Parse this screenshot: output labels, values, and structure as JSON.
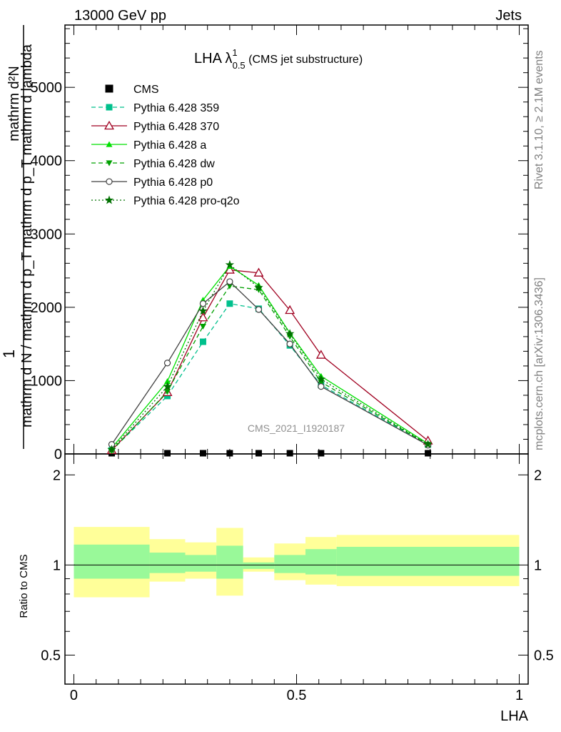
{
  "header": {
    "left": "13000 GeV pp",
    "right": "Jets"
  },
  "side_labels": {
    "rivet": "Rivet 3.1.10, ≥ 2.1M events",
    "mcplots": "mcplots.cern.ch [arXiv:1306.3436]"
  },
  "chart_data": [
    {
      "type": "line",
      "title_main": "LHA λ",
      "title_sup": "1",
      "title_sub": "0.5",
      "title_suffix": " (CMS jet substructure)",
      "watermark": "CMS_2021_I1920187",
      "ylabel_one": "1",
      "ylabel_num": "mathrm d²N",
      "ylabel_den": "mathrm d N / mathrm d p_T mathrm d p_T mathrm d lambda",
      "xlim": [
        -0.02,
        1.02
      ],
      "ylim": [
        0,
        5850
      ],
      "y_ticks": [
        0,
        1000,
        2000,
        3000,
        4000,
        5000
      ],
      "y_tick_labels": [
        "0",
        "1000",
        "2000",
        "3000",
        "4000",
        "5000"
      ],
      "legend_position": "top-left",
      "series": [
        {
          "name": "CMS",
          "color": "#000000",
          "marker": "square-filled",
          "dash": "none",
          "x": [
            0.085,
            0.21,
            0.29,
            0.35,
            0.415,
            0.485,
            0.555,
            0.795
          ],
          "y": [
            0,
            0,
            0,
            0,
            0,
            0,
            0,
            0
          ]
        },
        {
          "name": "Pythia 6.428 359",
          "color": "#00c08c",
          "marker": "square-filled",
          "dash": "6,4",
          "x": [
            0.085,
            0.21,
            0.29,
            0.35,
            0.415,
            0.485,
            0.555,
            0.795
          ],
          "y": [
            50,
            790,
            1530,
            2050,
            1980,
            1480,
            940,
            130
          ]
        },
        {
          "name": "Pythia 6.428 370",
          "color": "#a00020",
          "marker": "triangle-open",
          "dash": "none",
          "x": [
            0.085,
            0.21,
            0.29,
            0.35,
            0.415,
            0.485,
            0.555,
            0.795
          ],
          "y": [
            50,
            840,
            1860,
            2510,
            2470,
            1960,
            1350,
            180
          ]
        },
        {
          "name": "Pythia 6.428 a",
          "color": "#00e000",
          "marker": "triangle-filled",
          "dash": "none",
          "x": [
            0.085,
            0.21,
            0.29,
            0.35,
            0.415,
            0.485,
            0.555,
            0.795
          ],
          "y": [
            80,
            990,
            2100,
            2560,
            2300,
            1650,
            1060,
            140
          ]
        },
        {
          "name": "Pythia 6.428 dw",
          "color": "#00a000",
          "marker": "triangle-down-filled",
          "dash": "6,4",
          "x": [
            0.085,
            0.21,
            0.29,
            0.35,
            0.415,
            0.485,
            0.555,
            0.795
          ],
          "y": [
            40,
            850,
            1740,
            2290,
            2240,
            1600,
            980,
            130
          ]
        },
        {
          "name": "Pythia 6.428 p0",
          "color": "#404040",
          "marker": "circle-open",
          "dash": "none",
          "x": [
            0.085,
            0.21,
            0.29,
            0.35,
            0.415,
            0.485,
            0.555,
            0.795
          ],
          "y": [
            130,
            1240,
            2050,
            2350,
            1970,
            1500,
            920,
            120
          ]
        },
        {
          "name": "Pythia 6.428 pro-q2o",
          "color": "#007000",
          "marker": "star",
          "dash": "2,3",
          "x": [
            0.085,
            0.21,
            0.29,
            0.35,
            0.415,
            0.485,
            0.555,
            0.795
          ],
          "y": [
            60,
            920,
            1950,
            2580,
            2270,
            1640,
            1020,
            130
          ]
        }
      ]
    },
    {
      "type": "area",
      "ylabel": "Ratio to CMS",
      "xlabel": "LHA",
      "xlim": [
        -0.02,
        1.02
      ],
      "ylim": [
        0.4,
        2.35
      ],
      "y_ticks": [
        0.5,
        1,
        2
      ],
      "y_tick_labels": [
        "0.5",
        "1",
        "2"
      ],
      "x_ticks": [
        0,
        0.5,
        1
      ],
      "x_tick_labels": [
        "0",
        "0.5",
        "1"
      ],
      "bins": [
        {
          "x0": 0.0,
          "x1": 0.17,
          "inner": [
            0.9,
            1.17
          ],
          "outer": [
            0.78,
            1.34
          ]
        },
        {
          "x0": 0.17,
          "x1": 0.25,
          "inner": [
            0.94,
            1.1
          ],
          "outer": [
            0.88,
            1.22
          ]
        },
        {
          "x0": 0.25,
          "x1": 0.32,
          "inner": [
            0.95,
            1.08
          ],
          "outer": [
            0.9,
            1.19
          ]
        },
        {
          "x0": 0.32,
          "x1": 0.38,
          "inner": [
            0.9,
            1.16
          ],
          "outer": [
            0.79,
            1.33
          ]
        },
        {
          "x0": 0.38,
          "x1": 0.45,
          "inner": [
            0.97,
            1.02
          ],
          "outer": [
            0.95,
            1.06
          ]
        },
        {
          "x0": 0.45,
          "x1": 0.52,
          "inner": [
            0.94,
            1.08
          ],
          "outer": [
            0.89,
            1.18
          ]
        },
        {
          "x0": 0.52,
          "x1": 0.59,
          "inner": [
            0.93,
            1.13
          ],
          "outer": [
            0.86,
            1.24
          ]
        },
        {
          "x0": 0.59,
          "x1": 1.0,
          "inner": [
            0.92,
            1.15
          ],
          "outer": [
            0.85,
            1.26
          ]
        }
      ],
      "colors": {
        "inner": "#99f999",
        "outer": "#ffff99",
        "line": "#000000"
      }
    }
  ]
}
